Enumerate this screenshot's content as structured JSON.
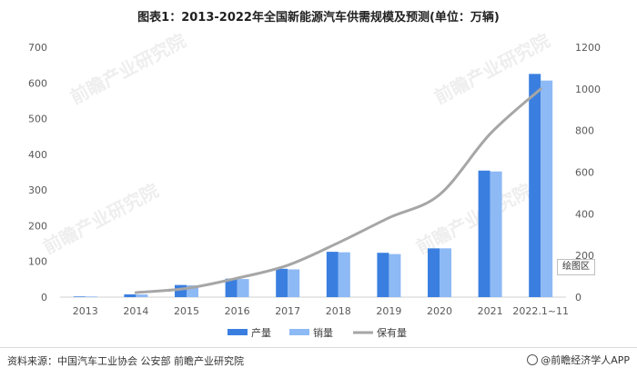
{
  "chart_data": {
    "type": "bar",
    "title": "图表1：2013-2022年全国新能源汽车供需规模及预测(单位：万辆)",
    "categories": [
      "2013",
      "2014",
      "2015",
      "2016",
      "2017",
      "2018",
      "2019",
      "2020",
      "2021",
      "2022.1~11"
    ],
    "series": [
      {
        "name": "产量",
        "type": "bar",
        "axis": "left",
        "color": "#3a7fe0",
        "values": [
          1.8,
          7.8,
          34,
          51.7,
          79.4,
          127,
          124.2,
          136.6,
          354.5,
          625.3
        ]
      },
      {
        "name": "销量",
        "type": "bar",
        "axis": "left",
        "color": "#8db9f5",
        "values": [
          1.8,
          7.5,
          33,
          50.7,
          77.7,
          125.6,
          120.6,
          136.7,
          352.1,
          606.7
        ]
      },
      {
        "name": "保有量",
        "type": "line",
        "axis": "right",
        "color": "#a6a6a6",
        "values": [
          null,
          22,
          42,
          91,
          153,
          261,
          381,
          492,
          784,
          1000
        ]
      }
    ],
    "left_axis": {
      "ylim": [
        0,
        700
      ],
      "ticks": [
        0,
        100,
        200,
        300,
        400,
        500,
        600,
        700
      ]
    },
    "right_axis": {
      "ylim": [
        0,
        1200
      ],
      "ticks": [
        0,
        200,
        400,
        600,
        800,
        1000,
        1200
      ]
    },
    "legend": {
      "position": "bottom"
    }
  },
  "source_text": "资料来源：中国汽车工业协会 公安部 前瞻产业研究院",
  "brand_text": "@前瞻经济学人APP",
  "watermark_text": "前瞻产业研究院",
  "corner_button_label": "绘图区"
}
